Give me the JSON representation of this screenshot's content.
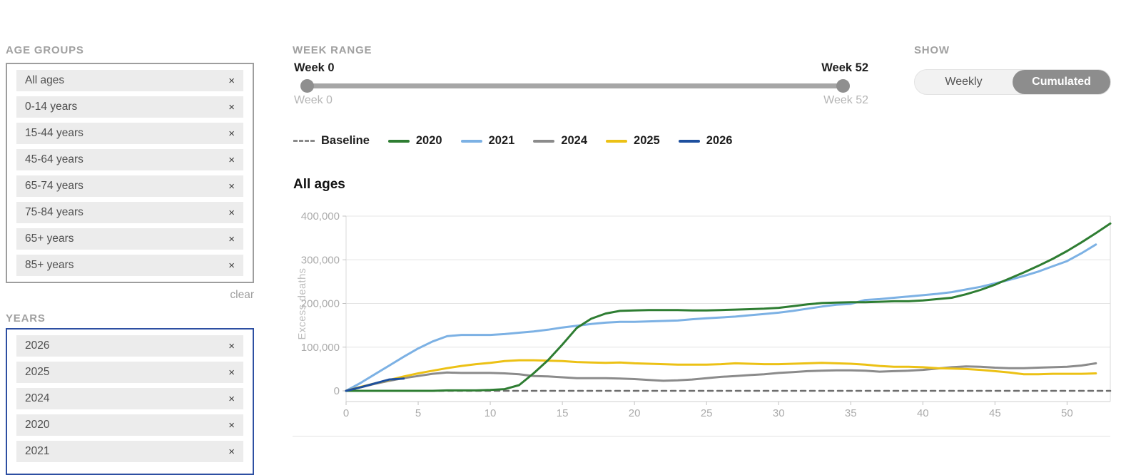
{
  "filters": {
    "remove_glyph": "×",
    "age_groups": {
      "label": "AGE GROUPS",
      "items": [
        "All ages",
        "0-14 years",
        "15-44 years",
        "45-64 years",
        "65-74 years",
        "75-84 years",
        "65+ years",
        "85+ years"
      ],
      "clear_label": "clear"
    },
    "years": {
      "label": "YEARS",
      "items": [
        "2026",
        "2025",
        "2024",
        "2020",
        "2021"
      ]
    }
  },
  "week_range": {
    "label": "WEEK RANGE",
    "from_value": "Week 0",
    "to_value": "Week 52",
    "min_label": "Week 0",
    "max_label": "Week 52"
  },
  "show": {
    "label": "SHOW",
    "options": [
      "Weekly",
      "Cumulated"
    ],
    "selected": "Cumulated"
  },
  "chart_data": {
    "type": "line",
    "title": "All ages",
    "xlabel": "",
    "ylabel": "Excess deaths",
    "xlim": [
      0,
      53
    ],
    "ylim": [
      -25000,
      400000
    ],
    "x_ticks": [
      0,
      5,
      10,
      15,
      20,
      25,
      30,
      35,
      40,
      45,
      50
    ],
    "y_ticks": [
      0,
      100000,
      200000,
      300000,
      400000
    ],
    "y_tick_labels": [
      "0",
      "100,000",
      "200,000",
      "300,000",
      "400,000"
    ],
    "grid": true,
    "legend_position": "top-left",
    "legend": [
      {
        "label": "Baseline",
        "color": "#8a8a8a",
        "dashed": true
      },
      {
        "label": "2020",
        "color": "#2e7d32",
        "dashed": false
      },
      {
        "label": "2021",
        "color": "#7cb1e4",
        "dashed": false
      },
      {
        "label": "2024",
        "color": "#8b8b8b",
        "dashed": false
      },
      {
        "label": "2025",
        "color": "#ecc115",
        "dashed": false
      },
      {
        "label": "2026",
        "color": "#1d4f9e",
        "dashed": false
      }
    ],
    "series": [
      {
        "name": "Baseline",
        "color": "#6e6e6e",
        "dashed": true,
        "x": [
          0,
          53
        ],
        "values": [
          0,
          0
        ]
      },
      {
        "name": "2021",
        "color": "#7cb1e4",
        "dashed": false,
        "x": [
          0,
          1,
          2,
          3,
          4,
          5,
          6,
          7,
          8,
          9,
          10,
          11,
          12,
          13,
          14,
          15,
          16,
          17,
          18,
          19,
          20,
          21,
          22,
          23,
          24,
          25,
          26,
          27,
          28,
          29,
          30,
          31,
          32,
          33,
          34,
          35,
          36,
          37,
          38,
          39,
          40,
          41,
          42,
          43,
          44,
          45,
          46,
          47,
          48,
          49,
          50,
          51,
          52
        ],
        "values": [
          0,
          18000,
          38000,
          58000,
          78000,
          97000,
          113000,
          125000,
          128000,
          128000,
          128000,
          130000,
          133000,
          136000,
          140000,
          145000,
          149000,
          153000,
          156000,
          158000,
          158000,
          159000,
          160000,
          161000,
          164000,
          166000,
          168000,
          170000,
          173000,
          176000,
          179000,
          183000,
          188000,
          193000,
          197000,
          199000,
          208000,
          210000,
          213000,
          216000,
          219000,
          222000,
          226000,
          232000,
          238000,
          246000,
          254000,
          263000,
          273000,
          285000,
          297000,
          315000,
          335000
        ]
      },
      {
        "name": "2024",
        "color": "#8b8b8b",
        "dashed": false,
        "x": [
          0,
          1,
          2,
          3,
          4,
          5,
          6,
          7,
          8,
          9,
          10,
          11,
          12,
          13,
          14,
          15,
          16,
          17,
          18,
          19,
          20,
          21,
          22,
          23,
          24,
          25,
          26,
          27,
          28,
          29,
          30,
          31,
          32,
          33,
          34,
          35,
          36,
          37,
          38,
          39,
          40,
          41,
          42,
          43,
          44,
          45,
          46,
          47,
          48,
          49,
          50,
          51,
          52
        ],
        "values": [
          0,
          8000,
          16000,
          23000,
          29000,
          34000,
          39000,
          42000,
          41000,
          41000,
          41000,
          40000,
          38000,
          34000,
          33000,
          31000,
          29000,
          29000,
          29000,
          28000,
          27000,
          25000,
          23000,
          24000,
          26000,
          29000,
          32000,
          34000,
          36000,
          38000,
          41000,
          43000,
          45000,
          46000,
          47000,
          47000,
          46000,
          44000,
          45000,
          46000,
          48000,
          51000,
          54000,
          56000,
          55000,
          53000,
          52000,
          52000,
          53000,
          54000,
          55000,
          58000,
          63000
        ]
      },
      {
        "name": "2025",
        "color": "#ecc115",
        "dashed": false,
        "x": [
          0,
          1,
          2,
          3,
          4,
          5,
          6,
          7,
          8,
          9,
          10,
          11,
          12,
          13,
          14,
          15,
          16,
          17,
          18,
          19,
          20,
          21,
          22,
          23,
          24,
          25,
          26,
          27,
          28,
          29,
          30,
          31,
          32,
          33,
          34,
          35,
          36,
          37,
          38,
          39,
          40,
          41,
          42,
          43,
          44,
          45,
          46,
          47,
          48,
          49,
          50,
          51,
          52
        ],
        "values": [
          0,
          9000,
          17000,
          25000,
          33000,
          40000,
          46000,
          52000,
          57000,
          61000,
          64000,
          68000,
          70000,
          70000,
          69000,
          68000,
          66000,
          65000,
          64000,
          65000,
          63000,
          62000,
          61000,
          60000,
          60000,
          60000,
          61000,
          63000,
          62000,
          61000,
          61000,
          62000,
          63000,
          64000,
          63000,
          62000,
          60000,
          57000,
          55000,
          55000,
          54000,
          52000,
          51000,
          50000,
          48000,
          45000,
          42000,
          38000,
          38000,
          39000,
          39000,
          39000,
          40000
        ]
      },
      {
        "name": "2020",
        "color": "#2e7d32",
        "dashed": false,
        "x": [
          0,
          1,
          2,
          3,
          4,
          5,
          6,
          7,
          8,
          9,
          10,
          11,
          12,
          13,
          14,
          15,
          16,
          17,
          18,
          19,
          20,
          21,
          22,
          23,
          24,
          25,
          26,
          27,
          28,
          29,
          30,
          31,
          32,
          33,
          34,
          35,
          36,
          37,
          38,
          39,
          40,
          41,
          42,
          43,
          44,
          45,
          46,
          47,
          48,
          49,
          50,
          51,
          52,
          53
        ],
        "values": [
          0,
          0,
          0,
          0,
          0,
          0,
          0,
          1000,
          1000,
          1000,
          2000,
          4000,
          13000,
          40000,
          70000,
          106000,
          144000,
          165000,
          177000,
          183000,
          184000,
          185000,
          185000,
          185000,
          184000,
          184000,
          185000,
          186000,
          187000,
          188000,
          190000,
          194000,
          198000,
          201000,
          202000,
          203000,
          203000,
          204000,
          205000,
          205000,
          207000,
          210000,
          213000,
          221000,
          231000,
          243000,
          257000,
          271000,
          286000,
          302000,
          320000,
          340000,
          361000,
          383000
        ]
      },
      {
        "name": "2026",
        "color": "#1d4f9e",
        "dashed": false,
        "x": [
          0,
          1,
          2,
          3,
          4
        ],
        "values": [
          0,
          8000,
          17000,
          26000,
          28000
        ]
      }
    ]
  }
}
